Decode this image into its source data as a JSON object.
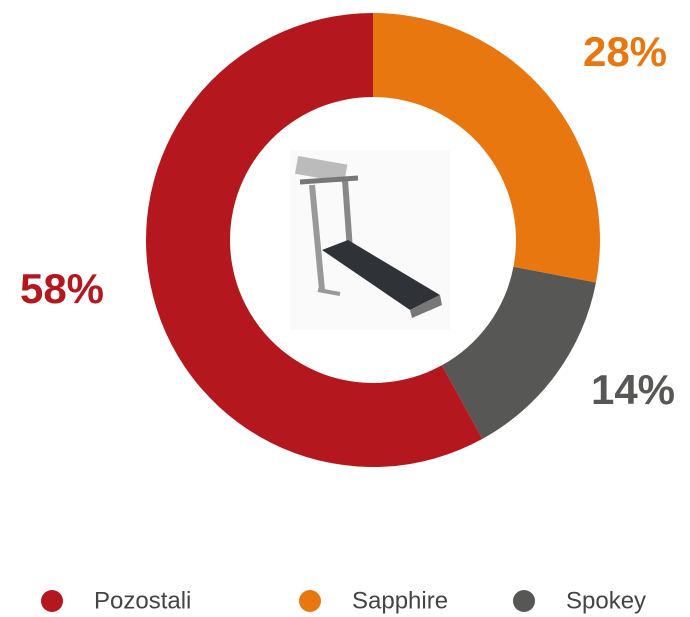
{
  "chart_data": {
    "type": "donut",
    "categories": [
      "Pozostali",
      "Sapphire",
      "Spokey"
    ],
    "values": [
      58,
      28,
      14
    ],
    "value_labels": [
      "58%",
      "28%",
      "14%"
    ],
    "colors": [
      "#b5171f",
      "#e8770f",
      "#575756"
    ],
    "legend": "bottom"
  }
}
